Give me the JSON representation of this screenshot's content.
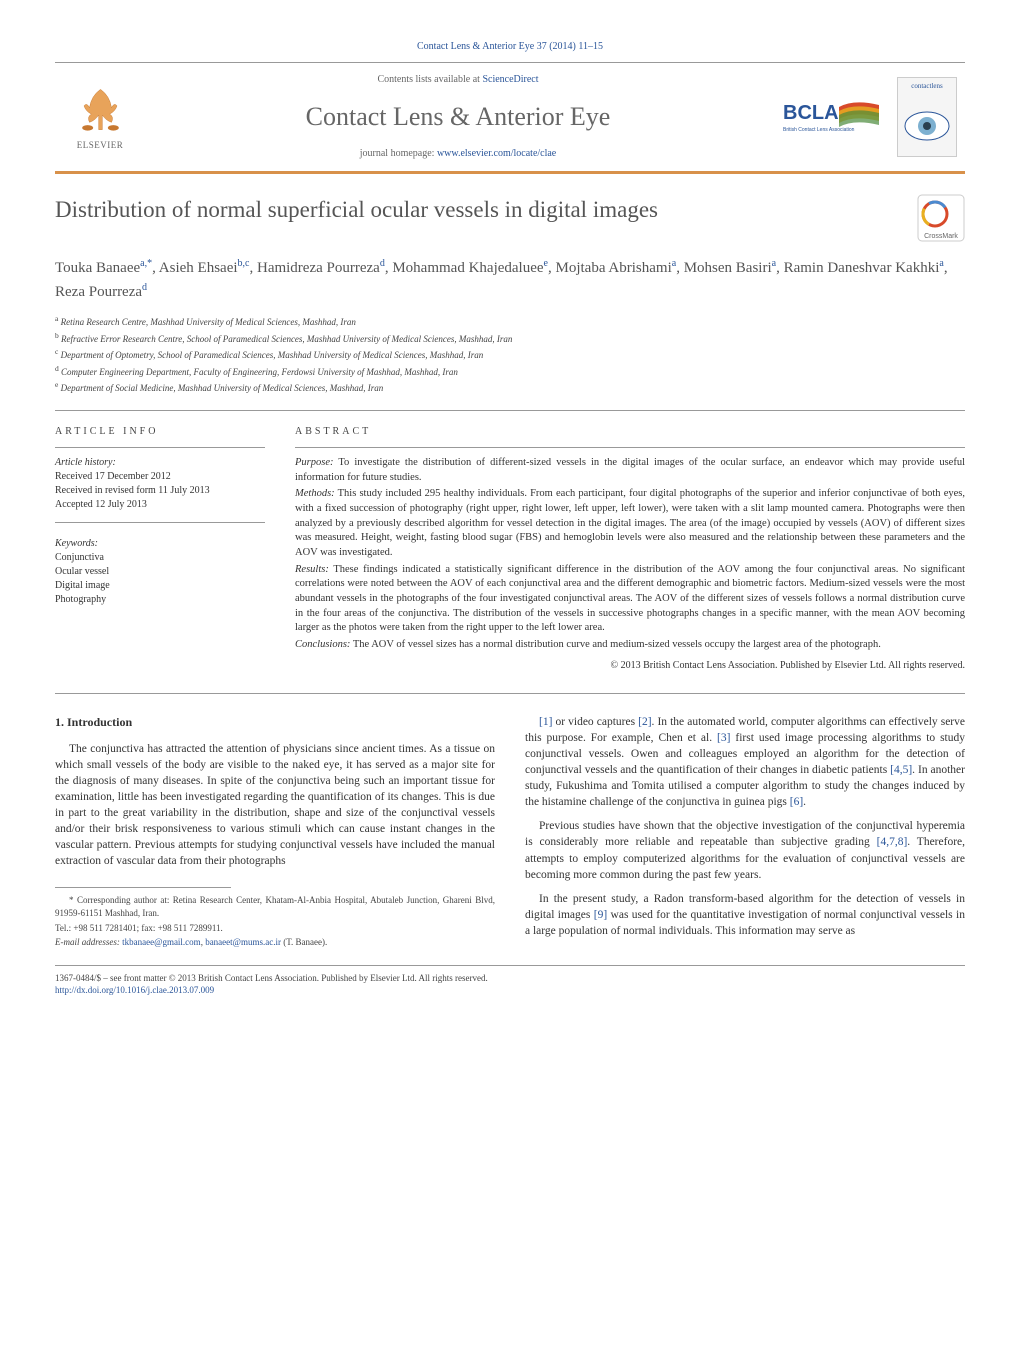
{
  "colors": {
    "link": "#2a5599",
    "accent_border": "#d8914a",
    "text": "#333333",
    "muted": "#666666"
  },
  "header": {
    "running_head": "Contact Lens & Anterior Eye 37 (2014) 11–15",
    "contents_line_prefix": "Contents lists available at ",
    "contents_line_link": "ScienceDirect",
    "journal_title": "Contact Lens & Anterior Eye",
    "homepage_prefix": "journal homepage: ",
    "homepage_link": "www.elsevier.com/locate/clae",
    "elsevier_label": "ELSEVIER",
    "bcla_label": "BCLA",
    "bcla_sub": "British Contact Lens Association",
    "cover_label": "contactlens",
    "crossmark_label": "CrossMark"
  },
  "article": {
    "title": "Distribution of normal superficial ocular vessels in digital images",
    "authors_html": "Touka Banaee<sup>a,*</sup>, Asieh Ehsaei<sup>b,c</sup>, Hamidreza Pourreza<sup>d</sup>, Mohammad Khajedaluee<sup>e</sup>, Mojtaba Abrishami<sup>a</sup>, Mohsen Basiri<sup>a</sup>, Ramin Daneshvar Kakhki<sup>a</sup>, Reza Pourreza<sup>d</sup>",
    "affiliations": [
      {
        "sup": "a",
        "text": "Retina Research Centre, Mashhad University of Medical Sciences, Mashhad, Iran"
      },
      {
        "sup": "b",
        "text": "Refractive Error Research Centre, School of Paramedical Sciences, Mashhad University of Medical Sciences, Mashhad, Iran"
      },
      {
        "sup": "c",
        "text": "Department of Optometry, School of Paramedical Sciences, Mashhad University of Medical Sciences, Mashhad, Iran"
      },
      {
        "sup": "d",
        "text": "Computer Engineering Department, Faculty of Engineering, Ferdowsi University of Mashhad, Mashhad, Iran"
      },
      {
        "sup": "e",
        "text": "Department of Social Medicine, Mashhad University of Medical Sciences, Mashhad, Iran"
      }
    ]
  },
  "info": {
    "heading": "ARTICLE INFO",
    "history_label": "Article history:",
    "history": [
      "Received 17 December 2012",
      "Received in revised form 11 July 2013",
      "Accepted 12 July 2013"
    ],
    "keywords_label": "Keywords:",
    "keywords": [
      "Conjunctiva",
      "Ocular vessel",
      "Digital image",
      "Photography"
    ]
  },
  "abstract": {
    "heading": "ABSTRACT",
    "sections": [
      {
        "label": "Purpose:",
        "text": "To investigate the distribution of different-sized vessels in the digital images of the ocular surface, an endeavor which may provide useful information for future studies."
      },
      {
        "label": "Methods:",
        "text": "This study included 295 healthy individuals. From each participant, four digital photographs of the superior and inferior conjunctivae of both eyes, with a fixed succession of photography (right upper, right lower, left upper, left lower), were taken with a slit lamp mounted camera. Photographs were then analyzed by a previously described algorithm for vessel detection in the digital images. The area (of the image) occupied by vessels (AOV) of different sizes was measured. Height, weight, fasting blood sugar (FBS) and hemoglobin levels were also measured and the relationship between these parameters and the AOV was investigated."
      },
      {
        "label": "Results:",
        "text": "These findings indicated a statistically significant difference in the distribution of the AOV among the four conjunctival areas. No significant correlations were noted between the AOV of each conjunctival area and the different demographic and biometric factors. Medium-sized vessels were the most abundant vessels in the photographs of the four investigated conjunctival areas. The AOV of the different sizes of vessels follows a normal distribution curve in the four areas of the conjunctiva. The distribution of the vessels in successive photographs changes in a specific manner, with the mean AOV becoming larger as the photos were taken from the right upper to the left lower area."
      },
      {
        "label": "Conclusions:",
        "text": "The AOV of vessel sizes has a normal distribution curve and medium-sized vessels occupy the largest area of the photograph."
      }
    ],
    "copyright": "© 2013 British Contact Lens Association. Published by Elsevier Ltd. All rights reserved."
  },
  "body": {
    "section_number": "1.",
    "section_title": "Introduction",
    "col1_paras": [
      "The conjunctiva has attracted the attention of physicians since ancient times. As a tissue on which small vessels of the body are visible to the naked eye, it has served as a major site for the diagnosis of many diseases. In spite of the conjunctiva being such an important tissue for examination, little has been investigated regarding the quantification of its changes. This is due in part to the great variability in the distribution, shape and size of the conjunctival vessels and/or their brisk responsiveness to various stimuli which can cause instant changes in the vascular pattern. Previous attempts for studying conjunctival vessels have included the manual extraction of vascular data from their photographs"
    ],
    "col2_paras": [
      "[1] or video captures [2]. In the automated world, computer algorithms can effectively serve this purpose. For example, Chen et al. [3] first used image processing algorithms to study conjunctival vessels. Owen and colleagues employed an algorithm for the detection of conjunctival vessels and the quantification of their changes in diabetic patients [4,5]. In another study, Fukushima and Tomita utilised a computer algorithm to study the changes induced by the histamine challenge of the conjunctiva in guinea pigs [6].",
      "Previous studies have shown that the objective investigation of the conjunctival hyperemia is considerably more reliable and repeatable than subjective grading [4,7,8]. Therefore, attempts to employ computerized algorithms for the evaluation of conjunctival vessels are becoming more common during the past few years.",
      "In the present study, a Radon transform-based algorithm for the detection of vessels in digital images [9] was used for the quantitative investigation of normal conjunctival vessels in a large population of normal individuals. This information may serve as"
    ],
    "refs_in_col2": [
      "[1]",
      "[2]",
      "[3]",
      "[4,5]",
      "[6]",
      "[4,7,8]",
      "[9]"
    ]
  },
  "footnotes": {
    "corresponding": "* Corresponding author at: Retina Research Center, Khatam-Al-Anbia Hospital, Abutaleb Junction, Ghareni Blvd, 91959-61151 Mashhad, Iran.",
    "tel_fax": "Tel.: +98 511 7281401; fax: +98 511 7289911.",
    "email_label": "E-mail addresses: ",
    "emails": [
      "tkbanaee@gmail.com",
      "banaeet@mums.ac.ir"
    ],
    "email_tail": " (T. Banaee)."
  },
  "bottom": {
    "front_matter": "1367-0484/$ – see front matter © 2013 British Contact Lens Association. Published by Elsevier Ltd. All rights reserved.",
    "doi": "http://dx.doi.org/10.1016/j.clae.2013.07.009"
  }
}
